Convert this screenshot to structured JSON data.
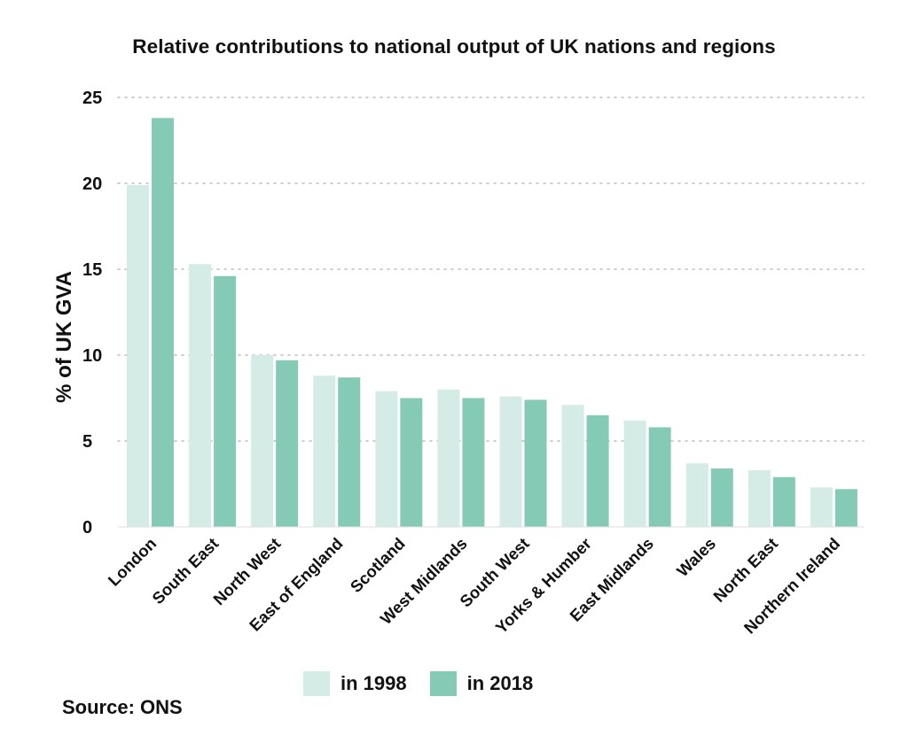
{
  "chart_data": {
    "type": "bar",
    "title": "Relative contributions to national output of UK nations and regions",
    "ylabel": "% of UK GVA",
    "xlabel": "",
    "ylim": [
      0,
      25
    ],
    "yticks": [
      0,
      5,
      10,
      15,
      20,
      25
    ],
    "grid": "horizontal dotted",
    "legend_position": "bottom",
    "categories": [
      "London",
      "South East",
      "North West",
      "East of England",
      "Scotland",
      "West Midlands",
      "South West",
      "Yorks & Humber",
      "East Midlands",
      "Wales",
      "North East",
      "Northern Ireland"
    ],
    "series": [
      {
        "name": "in 1998",
        "color": "#d4ece5",
        "values": [
          19.9,
          15.3,
          10.0,
          8.8,
          7.9,
          8.0,
          7.6,
          7.1,
          6.2,
          3.7,
          3.3,
          2.3
        ]
      },
      {
        "name": "in 2018",
        "color": "#84cab5",
        "values": [
          23.8,
          14.6,
          9.7,
          8.7,
          7.5,
          7.5,
          7.4,
          6.5,
          5.8,
          3.4,
          2.9,
          2.2
        ]
      }
    ]
  },
  "source": "Source: ONS"
}
